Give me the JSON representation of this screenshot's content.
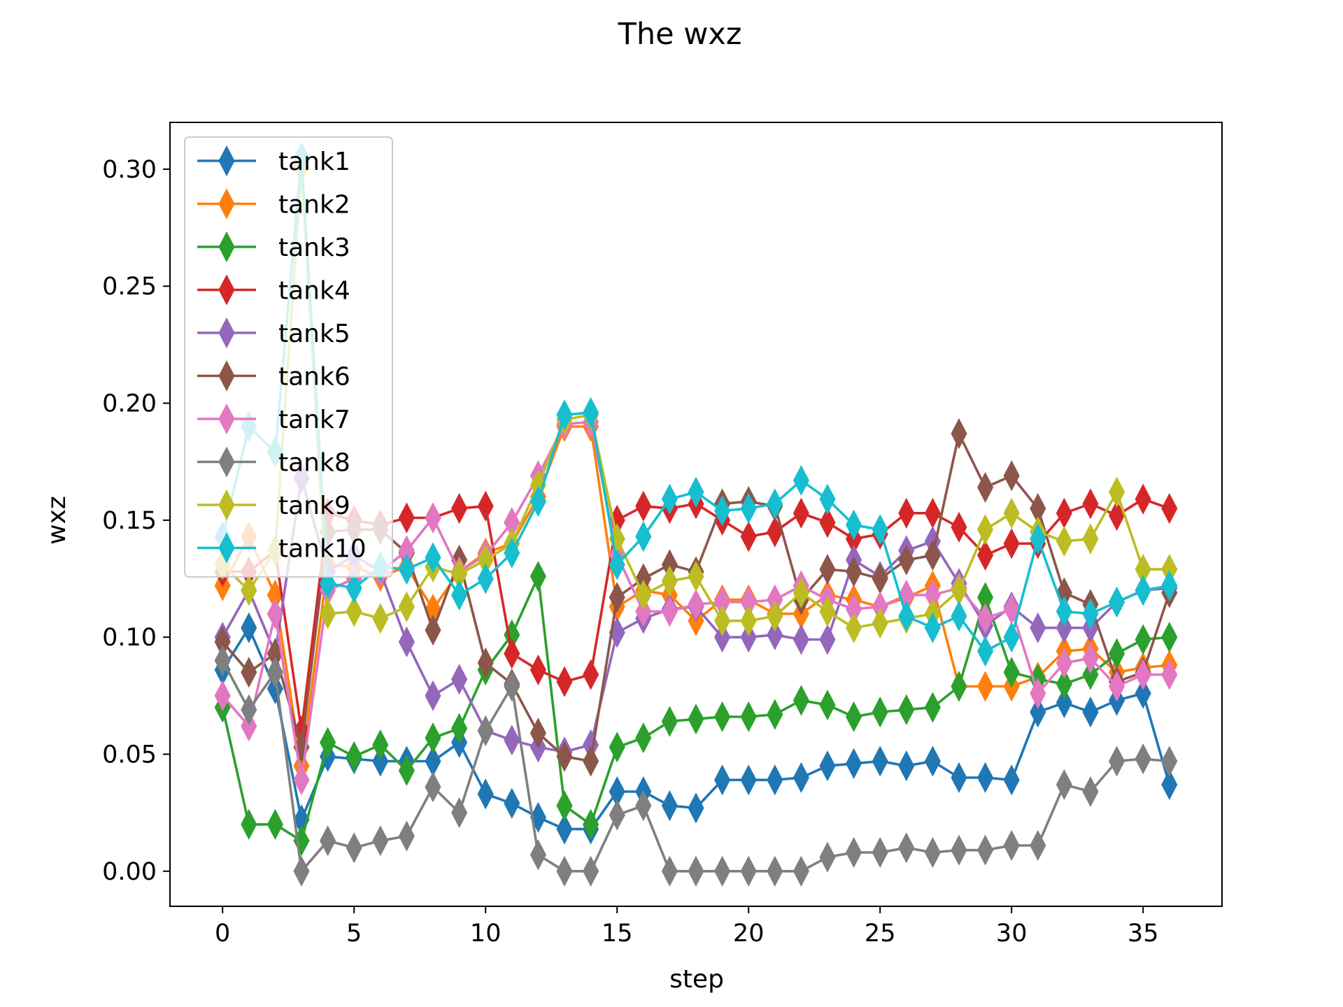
{
  "chart_data": {
    "type": "line",
    "title": "The wxz",
    "xlabel": "step",
    "ylabel": "wxz",
    "xlim": [
      -2,
      38
    ],
    "ylim": [
      -0.015,
      0.32
    ],
    "xticks": [
      0,
      5,
      10,
      15,
      20,
      25,
      30,
      35
    ],
    "yticks": [
      0.0,
      0.05,
      0.1,
      0.15,
      0.2,
      0.25,
      0.3
    ],
    "xtick_labels": [
      "0",
      "5",
      "10",
      "15",
      "20",
      "25",
      "30",
      "35"
    ],
    "ytick_labels": [
      "0.00",
      "0.05",
      "0.10",
      "0.15",
      "0.20",
      "0.25",
      "0.30"
    ],
    "grid": false,
    "legend_position": "upper left",
    "marker": "thin-diamond",
    "x": [
      0,
      1,
      2,
      3,
      4,
      5,
      6,
      7,
      8,
      9,
      10,
      11,
      12,
      13,
      14,
      15,
      16,
      17,
      18,
      19,
      20,
      21,
      22,
      23,
      24,
      25,
      26,
      27,
      28,
      29,
      30,
      31,
      32,
      33,
      34,
      35,
      36
    ],
    "series": [
      {
        "name": "tank1",
        "color": "#1f77b4",
        "values": [
          0.086,
          0.104,
          0.078,
          0.022,
          0.049,
          0.048,
          0.047,
          0.047,
          0.047,
          0.055,
          0.033,
          0.029,
          0.023,
          0.018,
          0.018,
          0.034,
          0.034,
          0.028,
          0.027,
          0.039,
          0.039,
          0.039,
          0.04,
          0.045,
          0.046,
          0.047,
          0.045,
          0.047,
          0.04,
          0.04,
          0.039,
          0.068,
          0.072,
          0.068,
          0.073,
          0.076,
          0.037
        ]
      },
      {
        "name": "tank2",
        "color": "#ff7f0e",
        "values": [
          0.122,
          0.143,
          0.118,
          0.045,
          0.131,
          0.13,
          0.126,
          0.13,
          0.112,
          0.128,
          0.136,
          0.14,
          0.16,
          0.19,
          0.19,
          0.113,
          0.12,
          0.118,
          0.107,
          0.116,
          0.116,
          0.11,
          0.11,
          0.118,
          0.116,
          0.113,
          0.117,
          0.122,
          0.079,
          0.079,
          0.079,
          0.083,
          0.094,
          0.095,
          0.085,
          0.087,
          0.088
        ]
      },
      {
        "name": "tank3",
        "color": "#2ca02c",
        "values": [
          0.07,
          0.02,
          0.02,
          0.013,
          0.055,
          0.049,
          0.054,
          0.043,
          0.057,
          0.061,
          0.086,
          0.101,
          0.126,
          0.028,
          0.02,
          0.053,
          0.057,
          0.064,
          0.065,
          0.066,
          0.066,
          0.067,
          0.073,
          0.071,
          0.066,
          0.068,
          0.069,
          0.07,
          0.079,
          0.117,
          0.085,
          0.082,
          0.08,
          0.084,
          0.093,
          0.099,
          0.1
        ]
      },
      {
        "name": "tank4",
        "color": "#d62728",
        "values": [
          0.128,
          0.128,
          0.137,
          0.06,
          0.153,
          0.15,
          0.148,
          0.151,
          0.151,
          0.155,
          0.156,
          0.093,
          0.086,
          0.081,
          0.084,
          0.15,
          0.156,
          0.155,
          0.157,
          0.15,
          0.143,
          0.145,
          0.153,
          0.149,
          0.142,
          0.144,
          0.153,
          0.153,
          0.147,
          0.135,
          0.14,
          0.14,
          0.153,
          0.157,
          0.152,
          0.159,
          0.155
        ]
      },
      {
        "name": "tank5",
        "color": "#9467bd",
        "values": [
          0.1,
          0.12,
          0.093,
          0.168,
          0.128,
          0.135,
          0.128,
          0.098,
          0.075,
          0.082,
          0.06,
          0.056,
          0.053,
          0.051,
          0.054,
          0.102,
          0.108,
          0.112,
          0.113,
          0.1,
          0.1,
          0.101,
          0.099,
          0.099,
          0.133,
          0.126,
          0.137,
          0.141,
          0.123,
          0.105,
          0.113,
          0.104,
          0.104,
          0.104,
          0.115,
          0.12,
          0.121
        ]
      },
      {
        "name": "tank6",
        "color": "#8c564b",
        "values": [
          0.098,
          0.085,
          0.093,
          0.053,
          0.145,
          0.146,
          0.146,
          0.136,
          0.103,
          0.133,
          0.089,
          0.08,
          0.059,
          0.049,
          0.047,
          0.117,
          0.125,
          0.131,
          0.128,
          0.157,
          0.158,
          0.156,
          0.116,
          0.129,
          0.128,
          0.125,
          0.133,
          0.135,
          0.187,
          0.164,
          0.169,
          0.155,
          0.119,
          0.114,
          0.081,
          0.085,
          0.119
        ]
      },
      {
        "name": "tank7",
        "color": "#e377c2",
        "values": [
          0.075,
          0.062,
          0.11,
          0.039,
          0.12,
          0.125,
          0.128,
          0.137,
          0.151,
          0.128,
          0.135,
          0.149,
          0.169,
          0.191,
          0.192,
          0.135,
          0.111,
          0.111,
          0.114,
          0.115,
          0.115,
          0.116,
          0.122,
          0.116,
          0.112,
          0.113,
          0.118,
          0.118,
          0.121,
          0.108,
          0.112,
          0.076,
          0.089,
          0.091,
          0.079,
          0.084,
          0.084
        ]
      },
      {
        "name": "tank8",
        "color": "#7f7f7f",
        "values": [
          0.09,
          0.069,
          0.085,
          0.0,
          0.013,
          0.01,
          0.013,
          0.015,
          0.036,
          0.025,
          0.06,
          0.079,
          0.007,
          0.0,
          0.0,
          0.024,
          0.028,
          0.0,
          0.0,
          0.0,
          0.0,
          0.0,
          0.0,
          0.006,
          0.008,
          0.008,
          0.01,
          0.008,
          0.009,
          0.009,
          0.011,
          0.011,
          0.037,
          0.034,
          0.047,
          0.048,
          0.047
        ]
      },
      {
        "name": "tank9",
        "color": "#bcbd22",
        "values": [
          0.131,
          0.12,
          0.137,
          0.301,
          0.11,
          0.111,
          0.108,
          0.113,
          0.13,
          0.127,
          0.133,
          0.14,
          0.165,
          0.193,
          0.195,
          0.142,
          0.118,
          0.124,
          0.126,
          0.107,
          0.107,
          0.109,
          0.119,
          0.111,
          0.104,
          0.106,
          0.108,
          0.11,
          0.12,
          0.146,
          0.153,
          0.145,
          0.141,
          0.142,
          0.162,
          0.129,
          0.129
        ]
      },
      {
        "name": "tank10",
        "color": "#17becf",
        "values": [
          0.143,
          0.19,
          0.179,
          0.305,
          0.123,
          0.121,
          0.13,
          0.129,
          0.134,
          0.118,
          0.125,
          0.136,
          0.158,
          0.195,
          0.196,
          0.131,
          0.143,
          0.159,
          0.162,
          0.154,
          0.155,
          0.157,
          0.167,
          0.159,
          0.148,
          0.146,
          0.109,
          0.104,
          0.109,
          0.094,
          0.1,
          0.142,
          0.111,
          0.11,
          0.115,
          0.12,
          0.122
        ]
      }
    ]
  }
}
